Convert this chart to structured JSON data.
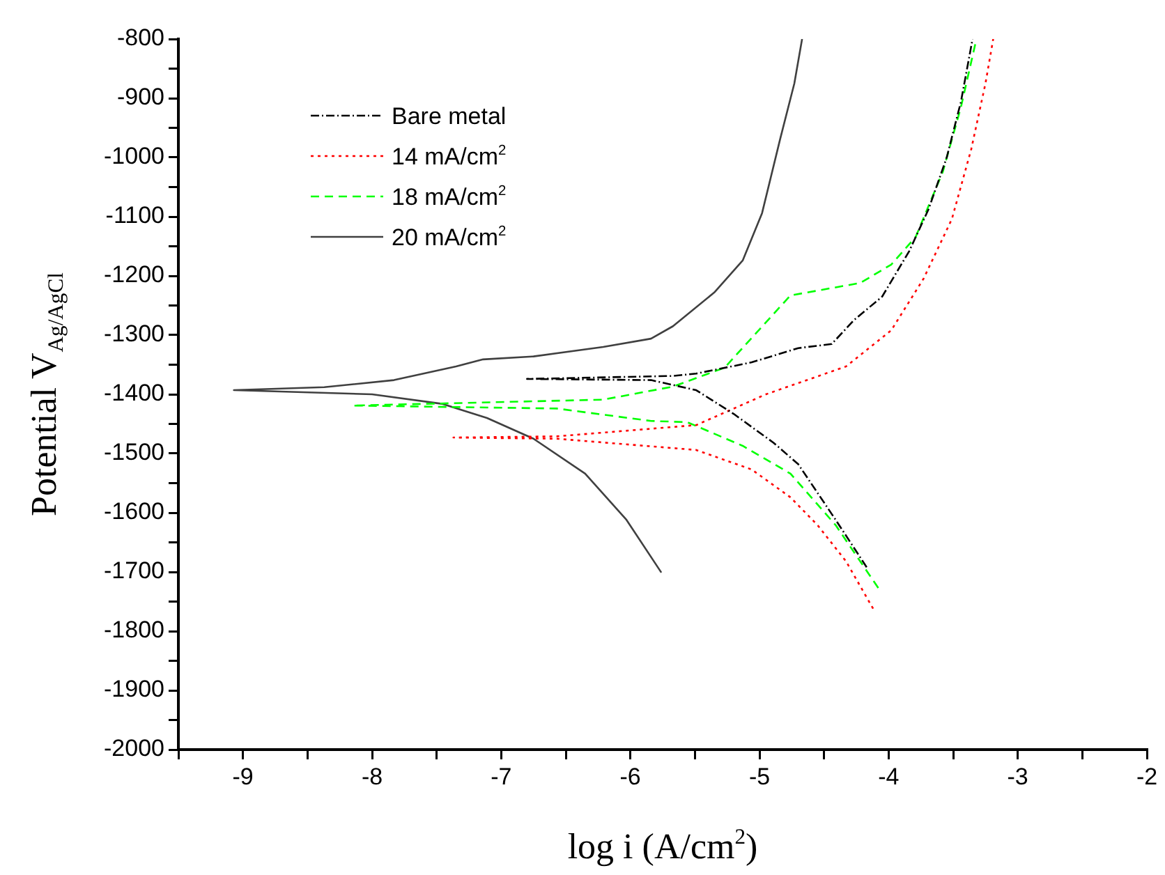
{
  "chart_data": {
    "type": "line",
    "xlabel": "log i (A/cm$^{2}$)",
    "ylabel": "Potential V$_{Ag/AgCl}$",
    "xlim": [
      -9.5,
      -2
    ],
    "ylim": [
      -2000,
      -800
    ],
    "xticks": [
      {
        "value": -9.5,
        "label": null
      },
      -9,
      {
        "value": -8.5,
        "label": null
      },
      -8,
      {
        "value": -7.5,
        "label": null
      },
      -7,
      {
        "value": -6.5,
        "label": null
      },
      -6,
      {
        "value": -5.5,
        "label": null
      },
      -5,
      {
        "value": -4.5,
        "label": null
      },
      -4,
      {
        "value": -3.5,
        "label": null
      },
      -3,
      {
        "value": -2.5,
        "label": null
      },
      -2
    ],
    "yticks": [
      -2000,
      {
        "value": -1950,
        "label": null
      },
      -1900,
      {
        "value": -1850,
        "label": null
      },
      -1800,
      {
        "value": -1750,
        "label": null
      },
      -1700,
      {
        "value": -1650,
        "label": null
      },
      -1600,
      {
        "value": -1550,
        "label": null
      },
      -1500,
      {
        "value": -1450,
        "label": null
      },
      -1400,
      {
        "value": -1350,
        "label": null
      },
      -1300,
      {
        "value": -1250,
        "label": null
      },
      -1200,
      {
        "value": -1150,
        "label": null
      },
      -1100,
      {
        "value": -1050,
        "label": null
      },
      -1000,
      {
        "value": -950,
        "label": null
      },
      -900,
      {
        "value": -850,
        "label": null
      },
      -800
    ],
    "grid": false,
    "legend": "top left",
    "marker": "none",
    "series": [
      {
        "name": "Bare metal",
        "color": "#000000",
        "line_style": "dashdot",
        "x": [
          -4.17,
          -4.41,
          -4.7,
          -4.89,
          -5.2,
          -5.49,
          -5.84,
          -6.8,
          -5.67,
          -5.49,
          -5.06,
          -4.7,
          -4.44,
          -4.27,
          -4.05,
          -3.84,
          -3.69,
          -3.55,
          -3.44,
          -3.35
        ],
        "values": [
          -1692,
          -1612,
          -1518,
          -1482,
          -1433,
          -1393,
          -1376,
          -1374,
          -1369,
          -1365,
          -1346,
          -1322,
          -1315,
          -1275,
          -1235,
          -1158,
          -1087,
          -1000,
          -906,
          -800
        ]
      },
      {
        "name": "14 mA/cm$^{2}$",
        "color": "#ff0000",
        "line_style": "dotted",
        "x": [
          -4.12,
          -4.33,
          -4.55,
          -4.76,
          -5.06,
          -5.49,
          -6.57,
          -7.37,
          -6.57,
          -5.49,
          -4.95,
          -4.33,
          -3.98,
          -3.73,
          -3.51,
          -3.36,
          -3.25,
          -3.19
        ],
        "values": [
          -1762,
          -1682,
          -1621,
          -1574,
          -1527,
          -1494,
          -1475,
          -1473,
          -1471,
          -1452,
          -1400,
          -1353,
          -1292,
          -1205,
          -1104,
          -986,
          -875,
          -800
        ]
      },
      {
        "name": "18 mA/cm$^{2}$",
        "color": "#00ff00",
        "line_style": "dashed",
        "x": [
          -4.08,
          -4.41,
          -4.76,
          -5.13,
          -5.56,
          -5.84,
          -6.57,
          -8.15,
          -6.21,
          -5.67,
          -5.27,
          -4.76,
          -4.22,
          -3.98,
          -3.79,
          -3.58,
          -3.44,
          -3.32
        ],
        "values": [
          -1727,
          -1621,
          -1534,
          -1487,
          -1447,
          -1445,
          -1424,
          -1419,
          -1409,
          -1387,
          -1355,
          -1233,
          -1212,
          -1181,
          -1134,
          -1024,
          -915,
          -800
        ]
      },
      {
        "name": "20 mA/cm$^{2}$",
        "color": "#404040",
        "line_style": "solid",
        "x": [
          -5.76,
          -6.03,
          -6.35,
          -6.75,
          -7.11,
          -7.46,
          -8.0,
          -9.07,
          -8.37,
          -7.83,
          -7.35,
          -7.14,
          -6.75,
          -6.21,
          -5.84,
          -5.67,
          -5.35,
          -5.13,
          -4.98,
          -4.84,
          -4.73,
          -4.67
        ],
        "values": [
          -1701,
          -1612,
          -1534,
          -1475,
          -1440,
          -1416,
          -1400,
          -1393,
          -1388,
          -1376,
          -1353,
          -1341,
          -1336,
          -1320,
          -1306,
          -1285,
          -1228,
          -1174,
          -1094,
          -969,
          -875,
          -800
        ]
      }
    ]
  }
}
